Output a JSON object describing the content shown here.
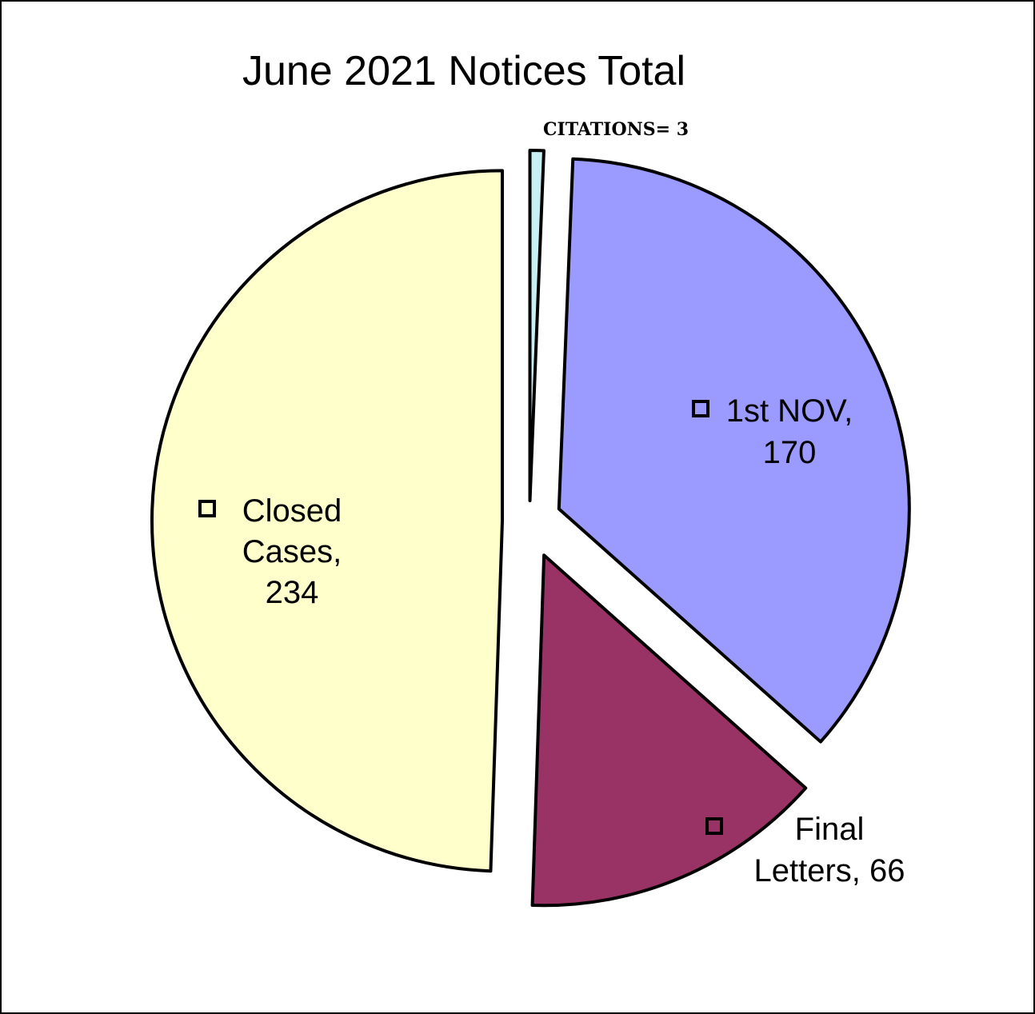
{
  "chart_data": {
    "type": "pie",
    "title": "June 2021 Notices Total",
    "annotation": "CITATIONS= 3",
    "slices": [
      {
        "name": "CITATIONS",
        "value": 3,
        "color": "#c8f0f4",
        "label_lines": []
      },
      {
        "name": "1st NOV",
        "value": 170,
        "color": "#9b9bff",
        "label_lines": [
          "1st NOV,",
          "170"
        ]
      },
      {
        "name": "Final Letters",
        "value": 66,
        "color": "#993366",
        "label_lines": [
          "Final",
          "Letters, 66"
        ]
      },
      {
        "name": "Closed Cases",
        "value": 234,
        "color": "#ffffcc",
        "label_lines": [
          "Closed",
          "Cases,",
          "234"
        ]
      }
    ],
    "legend": "none"
  }
}
